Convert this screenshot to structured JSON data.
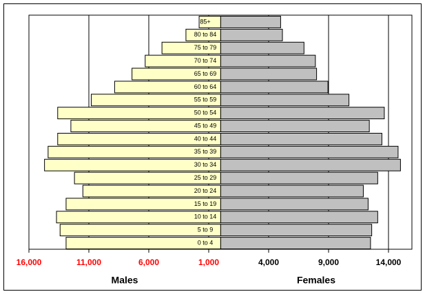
{
  "chart_data": {
    "type": "pyramid",
    "categories": [
      "0 to 4",
      "5 to 9",
      "10 to 14",
      "15 to 19",
      "20 to 24",
      "25 to 29",
      "30 to 34",
      "35 to 39",
      "40 to 44",
      "45 to 49",
      "50 to 54",
      "55 to 59",
      "60 to 64",
      "65 to 69",
      "70 to 74",
      "75 to 79",
      "80 to 84",
      "85+"
    ],
    "series": [
      {
        "name": "Males",
        "color": "#ffffc8",
        "tick_color": "#ff0000",
        "values": [
          12900,
          13400,
          13700,
          12900,
          11500,
          12200,
          14700,
          14400,
          13600,
          12500,
          13600,
          10800,
          8850,
          7400,
          6300,
          4900,
          2900,
          1800
        ],
        "xlim": [
          0,
          16000
        ],
        "xticks": [
          {
            "value": 16000,
            "label": "16,000"
          },
          {
            "value": 11000,
            "label": "11,000"
          },
          {
            "value": 6000,
            "label": "6,000"
          },
          {
            "value": 1000,
            "label": "1,000"
          }
        ]
      },
      {
        "name": "Females",
        "color": "#c0c0c0",
        "tick_color": "#000000",
        "values": [
          12500,
          12600,
          13100,
          12300,
          11900,
          13100,
          15000,
          14800,
          13450,
          12400,
          13650,
          10700,
          8950,
          8000,
          7900,
          6950,
          5150,
          5000
        ],
        "xlim": [
          0,
          16000
        ],
        "xticks": [
          {
            "value": 4000,
            "label": "4,000"
          },
          {
            "value": 9000,
            "label": "9,000"
          },
          {
            "value": 14000,
            "label": "14,000"
          }
        ]
      }
    ],
    "grid": true
  }
}
